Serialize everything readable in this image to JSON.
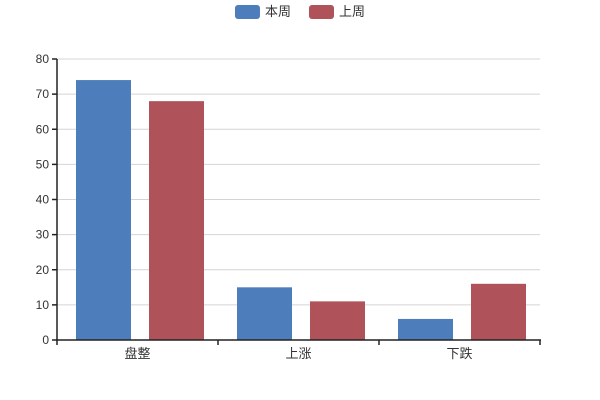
{
  "chart_data": {
    "type": "bar",
    "title": "",
    "categories": [
      "盘整",
      "上涨",
      "下跌"
    ],
    "series": [
      {
        "name": "本周",
        "color": "#4d7dbb",
        "values": [
          74,
          15,
          6
        ]
      },
      {
        "name": "上周",
        "color": "#af525a",
        "values": [
          68,
          11,
          16
        ]
      }
    ],
    "ylim": [
      0,
      80
    ],
    "ytick_step": 10,
    "yticks": [
      0,
      10,
      20,
      30,
      40,
      50,
      60,
      70,
      80
    ],
    "xlabel": "",
    "ylabel": "",
    "grid": "horizontal",
    "legend_position": "top-center"
  },
  "colors": {
    "background": "#ffffff",
    "axis": "#222222",
    "grid": "#d4d4d4",
    "label": "#333333"
  }
}
